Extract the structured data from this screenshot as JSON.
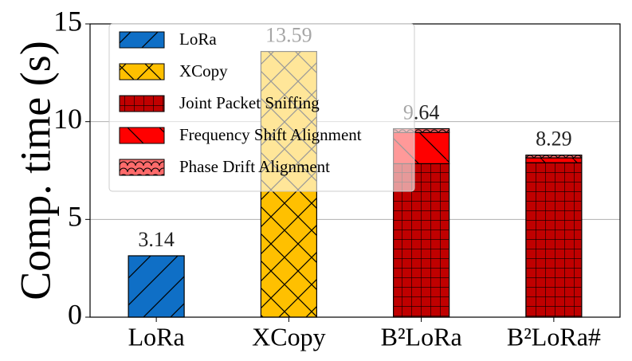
{
  "chart_data": {
    "type": "stacked_bar",
    "ylabel": "Comp. time (s)",
    "categories": [
      "LoRa",
      "XCopy",
      "B²LoRa",
      "B²LoRa#"
    ],
    "series": [
      {
        "name": "LoRa",
        "color": "#0f6fc6",
        "values": [
          3.14,
          null,
          null,
          null
        ]
      },
      {
        "name": "XCopy",
        "color": "#ffc000",
        "values": [
          null,
          13.59,
          null,
          null
        ]
      },
      {
        "name": "Joint Packet Sniffing",
        "color": "#c00000",
        "values": [
          null,
          null,
          7.85,
          7.9
        ]
      },
      {
        "name": "Frequency Shift Alignment",
        "color": "#ff0000",
        "values": [
          null,
          null,
          1.6,
          0.25
        ]
      },
      {
        "name": "Phase Drift Alignment",
        "color": "#ff6b6b",
        "values": [
          null,
          null,
          0.19,
          0.14
        ]
      }
    ],
    "totals": [
      3.14,
      13.59,
      9.64,
      8.29
    ],
    "ylim": [
      0,
      15
    ],
    "yticks": [
      0,
      5,
      10,
      15
    ],
    "grid": true,
    "legend": "upper left"
  }
}
